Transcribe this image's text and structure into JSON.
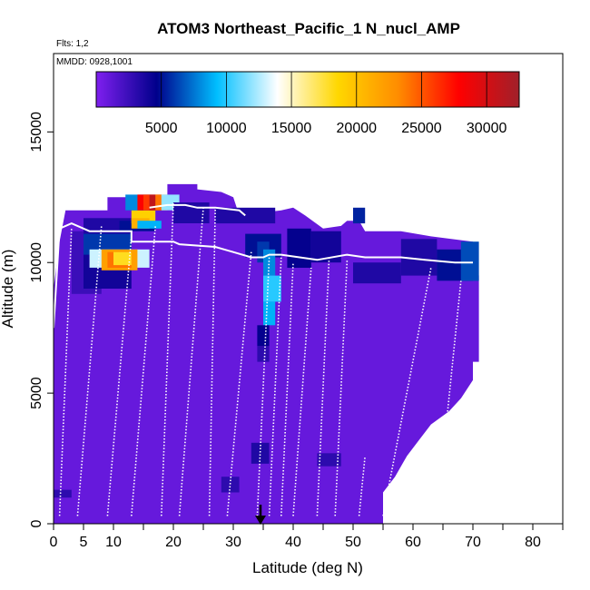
{
  "chart_data": {
    "type": "heatmap",
    "title": "ATOM3 Northeast_Pacific_1 N_nucl_AMP",
    "flights_note": "Flts: 1,2",
    "date_note": "MMDD: 0928,1001",
    "xlabel": "Latitude (deg N)",
    "ylabel": "Altitude (m)",
    "xlim": [
      0,
      85
    ],
    "ylim": [
      0,
      18000
    ],
    "x_ticks": [
      0,
      5,
      10,
      20,
      30,
      40,
      50,
      60,
      70,
      80
    ],
    "x_minor_ticks": [
      15,
      25,
      35,
      45,
      55,
      65,
      75,
      85
    ],
    "y_ticks": [
      0,
      5000,
      10000,
      15000
    ],
    "colorbar": {
      "range": [
        0,
        32500
      ],
      "ticks": [
        5000,
        10000,
        15000,
        20000,
        25000,
        30000
      ],
      "colors": [
        "#7F1FEF",
        "#00008B",
        "#00BFFF",
        "#FFFFFF",
        "#FFD700",
        "#FF8C00",
        "#FF0000",
        "#A0202A"
      ]
    },
    "cells": [
      [
        0,
        0,
        3,
        11800,
        900
      ],
      [
        3,
        8800,
        5,
        2400,
        2500
      ],
      [
        5,
        11000,
        8,
        700,
        3500
      ],
      [
        5,
        9000,
        8,
        1400,
        4000
      ],
      [
        5,
        10300,
        8,
        800,
        6000
      ],
      [
        6,
        9800,
        10,
        700,
        13000
      ],
      [
        8,
        9700,
        6,
        800,
        22000
      ],
      [
        9,
        9800,
        4,
        600,
        24000
      ],
      [
        10,
        9900,
        3,
        500,
        18000
      ],
      [
        11,
        11200,
        6,
        400,
        5000
      ],
      [
        13,
        11500,
        4,
        500,
        19000
      ],
      [
        13,
        11300,
        3,
        400,
        21000
      ],
      [
        12,
        12000,
        4,
        600,
        8000
      ],
      [
        14,
        12000,
        2,
        600,
        28000
      ],
      [
        15,
        12000,
        2,
        600,
        26000
      ],
      [
        16,
        12000,
        2,
        600,
        31000
      ],
      [
        17,
        12000,
        2,
        600,
        24000
      ],
      [
        18,
        12000,
        3,
        600,
        12000
      ],
      [
        14,
        11300,
        4,
        300,
        9000
      ],
      [
        20,
        11500,
        6,
        800,
        3500
      ],
      [
        27,
        11500,
        10,
        600,
        3500
      ],
      [
        32,
        10200,
        6,
        900,
        5000
      ],
      [
        34,
        10000,
        2,
        800,
        6000
      ],
      [
        35,
        9500,
        2,
        1000,
        8000
      ],
      [
        35,
        8500,
        3,
        1000,
        10000
      ],
      [
        35,
        7600,
        2,
        900,
        9000
      ],
      [
        34,
        6800,
        2,
        800,
        4500
      ],
      [
        34,
        6200,
        2,
        600,
        3000
      ],
      [
        39,
        9800,
        4,
        1500,
        4500
      ],
      [
        43,
        10000,
        5,
        1200,
        4000
      ],
      [
        50,
        9200,
        8,
        800,
        3500
      ],
      [
        58,
        9500,
        6,
        1400,
        3500
      ],
      [
        64,
        9300,
        6,
        1200,
        5000
      ],
      [
        68,
        9300,
        3,
        1500,
        6500
      ],
      [
        50,
        11500,
        2,
        600,
        5500
      ],
      [
        0,
        1000,
        3,
        300,
        3000
      ],
      [
        33,
        2300,
        3,
        800,
        3500
      ],
      [
        28,
        1200,
        3,
        600,
        3000
      ],
      [
        44,
        2200,
        4,
        500,
        3000
      ]
    ]
  }
}
